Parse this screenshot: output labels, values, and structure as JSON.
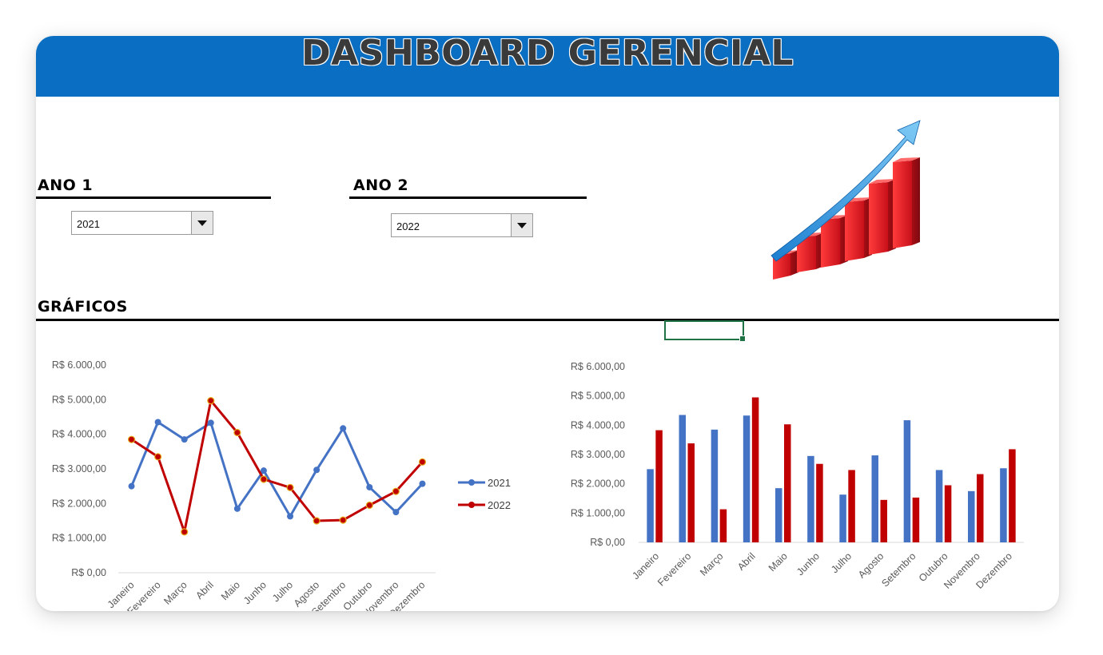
{
  "header": {
    "title": "DASHBOARD GERENCIAL"
  },
  "filters": {
    "year1": {
      "label": "ANO 1",
      "value": "2021"
    },
    "year2": {
      "label": "ANO 2",
      "value": "2022"
    }
  },
  "section": {
    "title": "GRÁFICOS"
  },
  "icons": {
    "growth": "growth-chart-icon",
    "dropdown": "chevron-down-icon"
  },
  "colors": {
    "banner": "#0a6fc2",
    "series2021": "#4472c4",
    "series2022": "#c00000"
  },
  "chart_data": [
    {
      "type": "line",
      "categories": [
        "Janeiro",
        "Fevereiro",
        "Março",
        "Abril",
        "Maio",
        "Junho",
        "Julho",
        "Agosto",
        "Setembro",
        "Outubro",
        "Novembro",
        "Dezembro"
      ],
      "series": [
        {
          "name": "2021",
          "values": [
            2500,
            4350,
            3850,
            4330,
            1850,
            2950,
            1630,
            2970,
            4170,
            2470,
            1750,
            2570
          ]
        },
        {
          "name": "2022",
          "values": [
            3850,
            3350,
            1180,
            4970,
            4050,
            2700,
            2460,
            1500,
            1520,
            1950,
            2350,
            3200
          ]
        }
      ],
      "yticks": [
        "R$ 0,00",
        "R$ 1.000,00",
        "R$ 2.000,00",
        "R$ 3.000,00",
        "R$ 4.000,00",
        "R$ 5.000,00",
        "R$ 6.000,00"
      ],
      "ylim": [
        0,
        6000
      ],
      "legend": "right",
      "grid": false
    },
    {
      "type": "bar",
      "categories": [
        "Janeiro",
        "Fevereiro",
        "Março",
        "Abril",
        "Maio",
        "Junho",
        "Julho",
        "Agosto",
        "Setembro",
        "Outubro",
        "Novembro",
        "Dezembro"
      ],
      "series": [
        {
          "name": "2021",
          "values": [
            2500,
            4350,
            3850,
            4330,
            1850,
            2950,
            1630,
            2970,
            4170,
            2470,
            1750,
            2530
          ]
        },
        {
          "name": "2022",
          "values": [
            3830,
            3380,
            1130,
            4950,
            4030,
            2680,
            2470,
            1450,
            1530,
            1950,
            2330,
            3180
          ]
        }
      ],
      "yticks": [
        "R$ 0,00",
        "R$ 1.000,00",
        "R$ 2.000,00",
        "R$ 3.000,00",
        "R$ 4.000,00",
        "R$ 5.000,00",
        "R$ 6.000,00"
      ],
      "ylim": [
        0,
        6000
      ],
      "legend": "none",
      "grid": false
    }
  ]
}
